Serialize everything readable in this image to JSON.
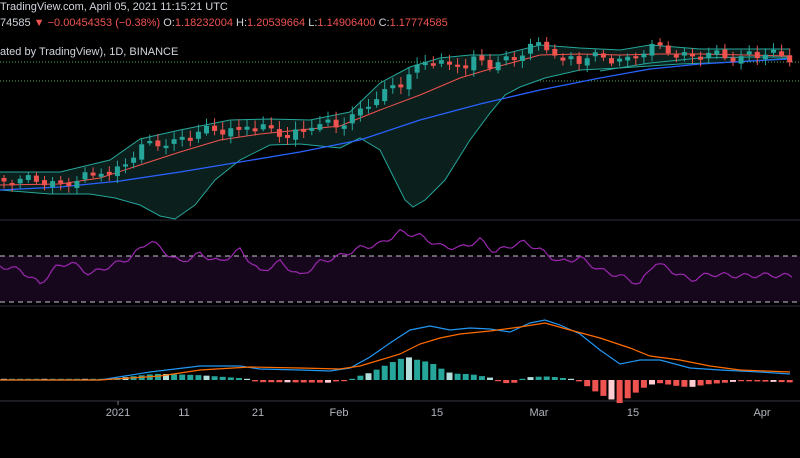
{
  "header": {
    "line1": "TradingView.com, April 05, 2021 11:15:21 UTC",
    "last_value": "74585",
    "change": "−0.00454353 (−0.38%)",
    "o_label": "O:",
    "o_value": "1.18232004",
    "h_label": "H:",
    "h_value": "1.20539664",
    "l_label": "L:",
    "l_value": "1.14906400",
    "c_label": "C:",
    "c_value": "1.17774585",
    "chart_title": "ated by TradingView), 1D, BINANCE"
  },
  "x_axis": {
    "labels": [
      "2021",
      "11",
      "21",
      "Feb",
      "15",
      "Mar",
      "15",
      "Apr"
    ]
  },
  "colors": {
    "up": "#26a69a",
    "down": "#ef5350",
    "background": "#000000",
    "rsi": "#9c27b0",
    "macd": "#2196f3",
    "signal": "#ff6d00",
    "bb_mid": "#ef5350",
    "ma_blue": "#2962ff",
    "guides": "#4caf50"
  }
}
